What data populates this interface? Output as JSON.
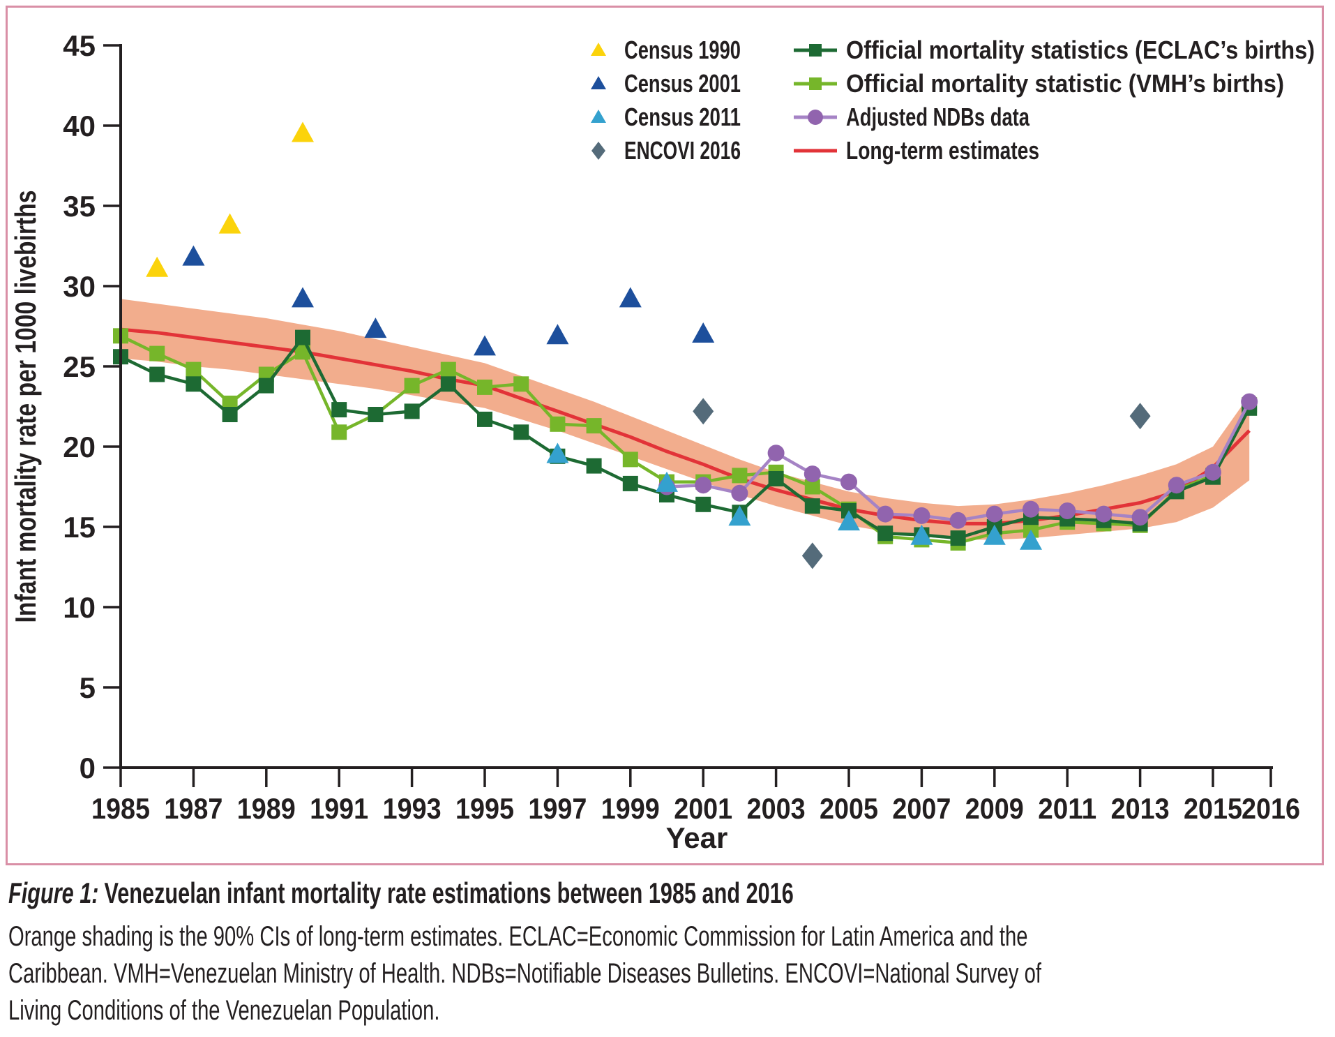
{
  "figure": {
    "caption": {
      "figure_label": "Figure 1:",
      "title": "Venezuelan infant mortality rate estimations between 1985 and 2016",
      "lines": [
        "Orange shading is the 90% CIs of long-term estimates. ECLAC=Economic Commission for Latin America and the",
        "Caribbean. VMH=Venezuelan Ministry of Health. NDBs=Notifiable Diseases Bulletins. ENCOVI=National Survey of",
        "Living Conditions of the Venezuelan Population."
      ]
    }
  },
  "chart_data": {
    "type": "line",
    "title": "",
    "xlabel": "Year",
    "ylabel": "Infant mortality rate per 1000 livebirths",
    "ylim": [
      0,
      45
    ],
    "xlim": [
      1985,
      2016
    ],
    "grid": false,
    "legend_position": "top-right",
    "yticks": [
      0,
      5,
      10,
      15,
      20,
      25,
      30,
      35,
      40,
      45
    ],
    "xtick_labels": [
      1985,
      1987,
      1989,
      1991,
      1993,
      1995,
      1997,
      1999,
      2001,
      2003,
      2005,
      2007,
      2009,
      2011,
      2013,
      2015,
      2016
    ],
    "years": [
      1985,
      1986,
      1987,
      1988,
      1989,
      1990,
      1991,
      1992,
      1993,
      1994,
      1995,
      1996,
      1997,
      1998,
      1999,
      2000,
      2001,
      2002,
      2003,
      2004,
      2005,
      2006,
      2007,
      2008,
      2009,
      2010,
      2011,
      2012,
      2013,
      2014,
      2015,
      2016
    ],
    "band": {
      "name": "90% CIs of long-term estimates",
      "color": "#f2ad8d",
      "lo": [
        25.5,
        25.3,
        25.0,
        24.8,
        24.5,
        24.2,
        23.9,
        23.6,
        23.2,
        22.8,
        22.4,
        21.7,
        21.0,
        20.2,
        19.4,
        18.6,
        17.8,
        17.0,
        16.3,
        15.7,
        15.1,
        14.7,
        14.4,
        14.2,
        14.2,
        14.3,
        14.5,
        14.7,
        14.9,
        15.3,
        16.2,
        17.9
      ],
      "hi": [
        29.2,
        28.9,
        28.6,
        28.3,
        28.0,
        27.6,
        27.2,
        26.7,
        26.2,
        25.7,
        25.2,
        24.4,
        23.6,
        22.8,
        21.9,
        21.0,
        20.1,
        19.2,
        18.4,
        17.8,
        17.2,
        16.8,
        16.5,
        16.3,
        16.4,
        16.7,
        17.1,
        17.6,
        18.2,
        18.9,
        20.0,
        23.2
      ]
    },
    "line_series": [
      {
        "name": "Long-term estimates",
        "color": "#e23338",
        "marker": "none",
        "start_year": 1985,
        "values": [
          27.3,
          27.1,
          26.8,
          26.5,
          26.2,
          25.9,
          25.5,
          25.1,
          24.7,
          24.2,
          23.8,
          23.0,
          22.2,
          21.4,
          20.6,
          19.7,
          18.9,
          18.0,
          17.3,
          16.7,
          16.1,
          15.7,
          15.4,
          15.2,
          15.2,
          15.4,
          15.7,
          16.1,
          16.5,
          17.2,
          18.7,
          21.0
        ]
      },
      {
        "name": "Official mortality statistic (VMH’s births)",
        "color": "#76b62a",
        "marker": "square",
        "start_year": 1985,
        "values": [
          26.9,
          25.8,
          24.8,
          22.7,
          24.5,
          25.9,
          20.9,
          22.0,
          23.8,
          24.8,
          23.7,
          23.9,
          21.4,
          21.3,
          19.2,
          17.8,
          17.8,
          18.2,
          18.4,
          17.5,
          16.1,
          14.4,
          14.2,
          14.0,
          14.6,
          14.8,
          15.3,
          15.2,
          15.1,
          17.3,
          18.2,
          22.6
        ]
      },
      {
        "name": "Official mortality statistics (ECLAC’s births)",
        "color": "#1d6a33",
        "marker": "square",
        "start_year": 1985,
        "values": [
          25.6,
          24.5,
          23.9,
          22.0,
          23.8,
          26.8,
          22.3,
          22.0,
          22.2,
          23.9,
          21.7,
          20.9,
          19.4,
          18.8,
          17.7,
          17.0,
          16.4,
          15.9,
          18.0,
          16.3,
          16.0,
          14.6,
          14.5,
          14.3,
          15.0,
          15.6,
          15.5,
          15.4,
          15.2,
          17.2,
          18.1,
          22.4
        ]
      },
      {
        "name": "Adjusted NDBs data",
        "color": "#9164ae",
        "line_color": "#a583c5",
        "marker": "circle",
        "start_year": 2000,
        "values": [
          17.5,
          17.6,
          17.1,
          19.6,
          18.3,
          17.8,
          15.8,
          15.7,
          15.4,
          15.8,
          16.1,
          16.0,
          15.8,
          15.6,
          17.6,
          18.4,
          22.8
        ]
      }
    ],
    "scatter_series": [
      {
        "name": "Census 1990",
        "color": "#fbd30b",
        "marker": "triangle",
        "points": [
          [
            1986,
            31.1
          ],
          [
            1988,
            33.8
          ],
          [
            1990,
            39.5
          ]
        ]
      },
      {
        "name": "Census 2001",
        "color": "#1d4f9c",
        "marker": "triangle",
        "points": [
          [
            1987,
            31.8
          ],
          [
            1990,
            29.2
          ],
          [
            1992,
            27.3
          ],
          [
            1995,
            26.2
          ],
          [
            1997,
            26.9
          ],
          [
            1999,
            29.2
          ],
          [
            2001,
            27.0
          ]
        ]
      },
      {
        "name": "Census 2011",
        "color": "#34a1ce",
        "marker": "triangle",
        "points": [
          [
            1997,
            19.5
          ],
          [
            2000,
            17.7
          ],
          [
            2002,
            15.6
          ],
          [
            2005,
            15.3
          ],
          [
            2007,
            14.4
          ],
          [
            2009,
            14.4
          ],
          [
            2010,
            14.1
          ]
        ]
      },
      {
        "name": "ENCOVI 2016",
        "color": "#546b7a",
        "marker": "diamond",
        "points": [
          [
            2001,
            22.2
          ],
          [
            2004,
            13.2
          ],
          [
            2013,
            21.9
          ]
        ]
      }
    ],
    "legend": {
      "left": [
        {
          "label": "Census 1990",
          "marker": "triangle",
          "color": "#fbd30b"
        },
        {
          "label": "Census 2001",
          "marker": "triangle",
          "color": "#1d4f9c"
        },
        {
          "label": "Census 2011",
          "marker": "triangle",
          "color": "#34a1ce"
        },
        {
          "label": "ENCOVI 2016",
          "marker": "diamond",
          "color": "#546b7a"
        }
      ],
      "right": [
        {
          "label": "Official mortality statistics (ECLAC’s births)",
          "swatch": "square-line",
          "color": "#1d6a33",
          "line_color": "#1d6a33"
        },
        {
          "label": "Official mortality statistic (VMH’s births)",
          "swatch": "square-line",
          "color": "#76b62a",
          "line_color": "#76b62a"
        },
        {
          "label": "Adjusted NDBs data",
          "swatch": "circle-line",
          "color": "#9164ae",
          "line_color": "#a583c5"
        },
        {
          "label": "Long-term estimates",
          "swatch": "line",
          "color": "#e23338",
          "line_color": "#e23338"
        }
      ]
    }
  }
}
